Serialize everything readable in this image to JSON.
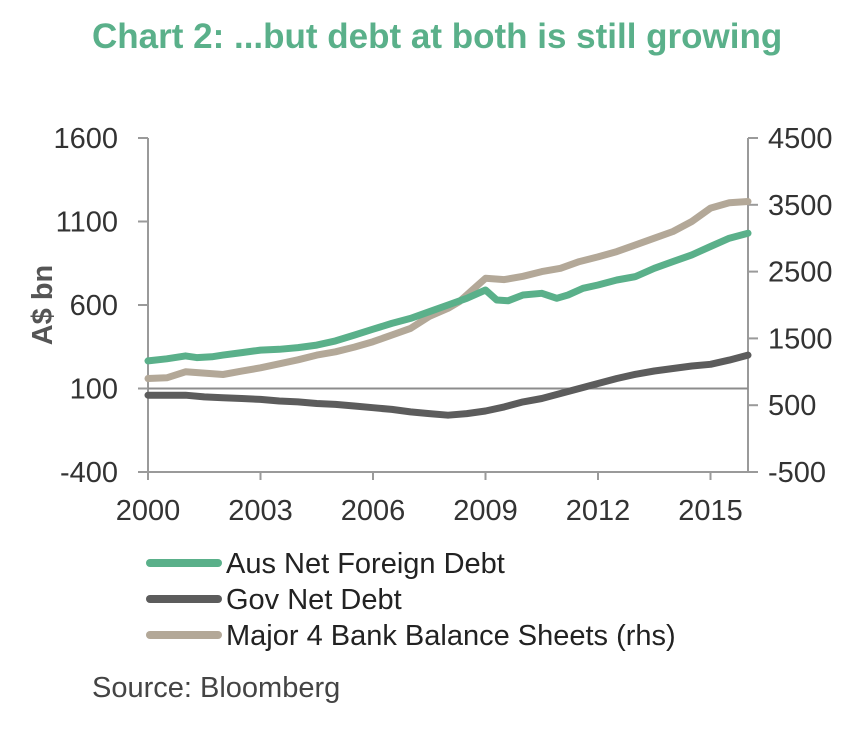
{
  "title": "Chart 2: ...but debt at both is still growing",
  "source": "Source: Bloomberg",
  "colors": {
    "title": "#5ab08a",
    "axis": "#9a9a9a",
    "baseline": "#8c8c8c"
  },
  "chart_data": {
    "type": "line",
    "title": "Chart 2: ...but debt at both is still growing",
    "ylabel": "A$ bn",
    "xlabel": "",
    "xlim": [
      2000,
      2016
    ],
    "ylim": [
      -400,
      1600
    ],
    "ylim_right": [
      -500,
      4500
    ],
    "x_ticks": [
      2000,
      2003,
      2006,
      2009,
      2012,
      2015
    ],
    "x_tick_labels": [
      "2000",
      "2003",
      "2006",
      "2009",
      "2012",
      "2015"
    ],
    "y_ticks": [
      -400,
      100,
      600,
      1100,
      1600
    ],
    "y_tick_labels": [
      "-400",
      "100",
      "600",
      "1100",
      "1600"
    ],
    "y_ticks_right": [
      -500,
      500,
      1500,
      2500,
      3500,
      4500
    ],
    "y_tick_labels_right": [
      "-500",
      "500",
      "1500",
      "2500",
      "3500",
      "4500"
    ],
    "legend_position": "bottom",
    "series": [
      {
        "name": "Aus Net Foreign Debt",
        "axis": "left",
        "color": "#5ab08a",
        "x": [
          2000,
          2000.5,
          2001,
          2001.3,
          2001.7,
          2002,
          2002.5,
          2003,
          2003.5,
          2004,
          2004.5,
          2005,
          2005.5,
          2006,
          2006.5,
          2007,
          2007.5,
          2008,
          2008.5,
          2009,
          2009.3,
          2009.6,
          2010,
          2010.5,
          2010.9,
          2011.2,
          2011.6,
          2012,
          2012.5,
          2013,
          2013.5,
          2014,
          2014.5,
          2015,
          2015.5,
          2016
        ],
        "y": [
          265,
          278,
          295,
          285,
          290,
          300,
          315,
          330,
          335,
          345,
          360,
          385,
          420,
          455,
          490,
          520,
          560,
          600,
          640,
          690,
          630,
          625,
          660,
          670,
          640,
          660,
          700,
          720,
          750,
          770,
          820,
          860,
          900,
          950,
          1000,
          1030
        ]
      },
      {
        "name": "Gov Net Debt",
        "axis": "left",
        "color": "#5c5c5c",
        "x": [
          2000,
          2001,
          2001.5,
          2002,
          2002.5,
          2003,
          2003.5,
          2004,
          2004.5,
          2005,
          2005.5,
          2006,
          2006.5,
          2007,
          2007.5,
          2008,
          2008.5,
          2009,
          2009.5,
          2010,
          2010.5,
          2011,
          2011.5,
          2012,
          2012.5,
          2013,
          2013.5,
          2014,
          2014.5,
          2015,
          2015.5,
          2016
        ],
        "y": [
          60,
          60,
          50,
          45,
          40,
          35,
          25,
          20,
          10,
          5,
          -5,
          -15,
          -25,
          -40,
          -50,
          -60,
          -50,
          -35,
          -10,
          20,
          40,
          70,
          100,
          130,
          160,
          185,
          205,
          220,
          235,
          245,
          270,
          300
        ]
      },
      {
        "name": "Major 4 Bank Balance Sheets (rhs)",
        "axis": "right",
        "color": "#b3a898",
        "x": [
          2000,
          2000.5,
          2001,
          2001.5,
          2002,
          2002.5,
          2003,
          2003.5,
          2004,
          2004.5,
          2005,
          2005.5,
          2006,
          2006.5,
          2007,
          2007.5,
          2008,
          2008.3,
          2008.7,
          2009,
          2009.5,
          2010,
          2010.5,
          2011,
          2011.5,
          2012,
          2012.5,
          2013,
          2013.5,
          2014,
          2014.5,
          2015,
          2015.5,
          2016
        ],
        "y": [
          900,
          910,
          1000,
          980,
          960,
          1010,
          1060,
          1120,
          1180,
          1250,
          1300,
          1370,
          1450,
          1550,
          1650,
          1830,
          1950,
          2050,
          2250,
          2400,
          2380,
          2430,
          2500,
          2550,
          2650,
          2720,
          2800,
          2900,
          3000,
          3100,
          3250,
          3450,
          3530,
          3550
        ]
      }
    ]
  }
}
